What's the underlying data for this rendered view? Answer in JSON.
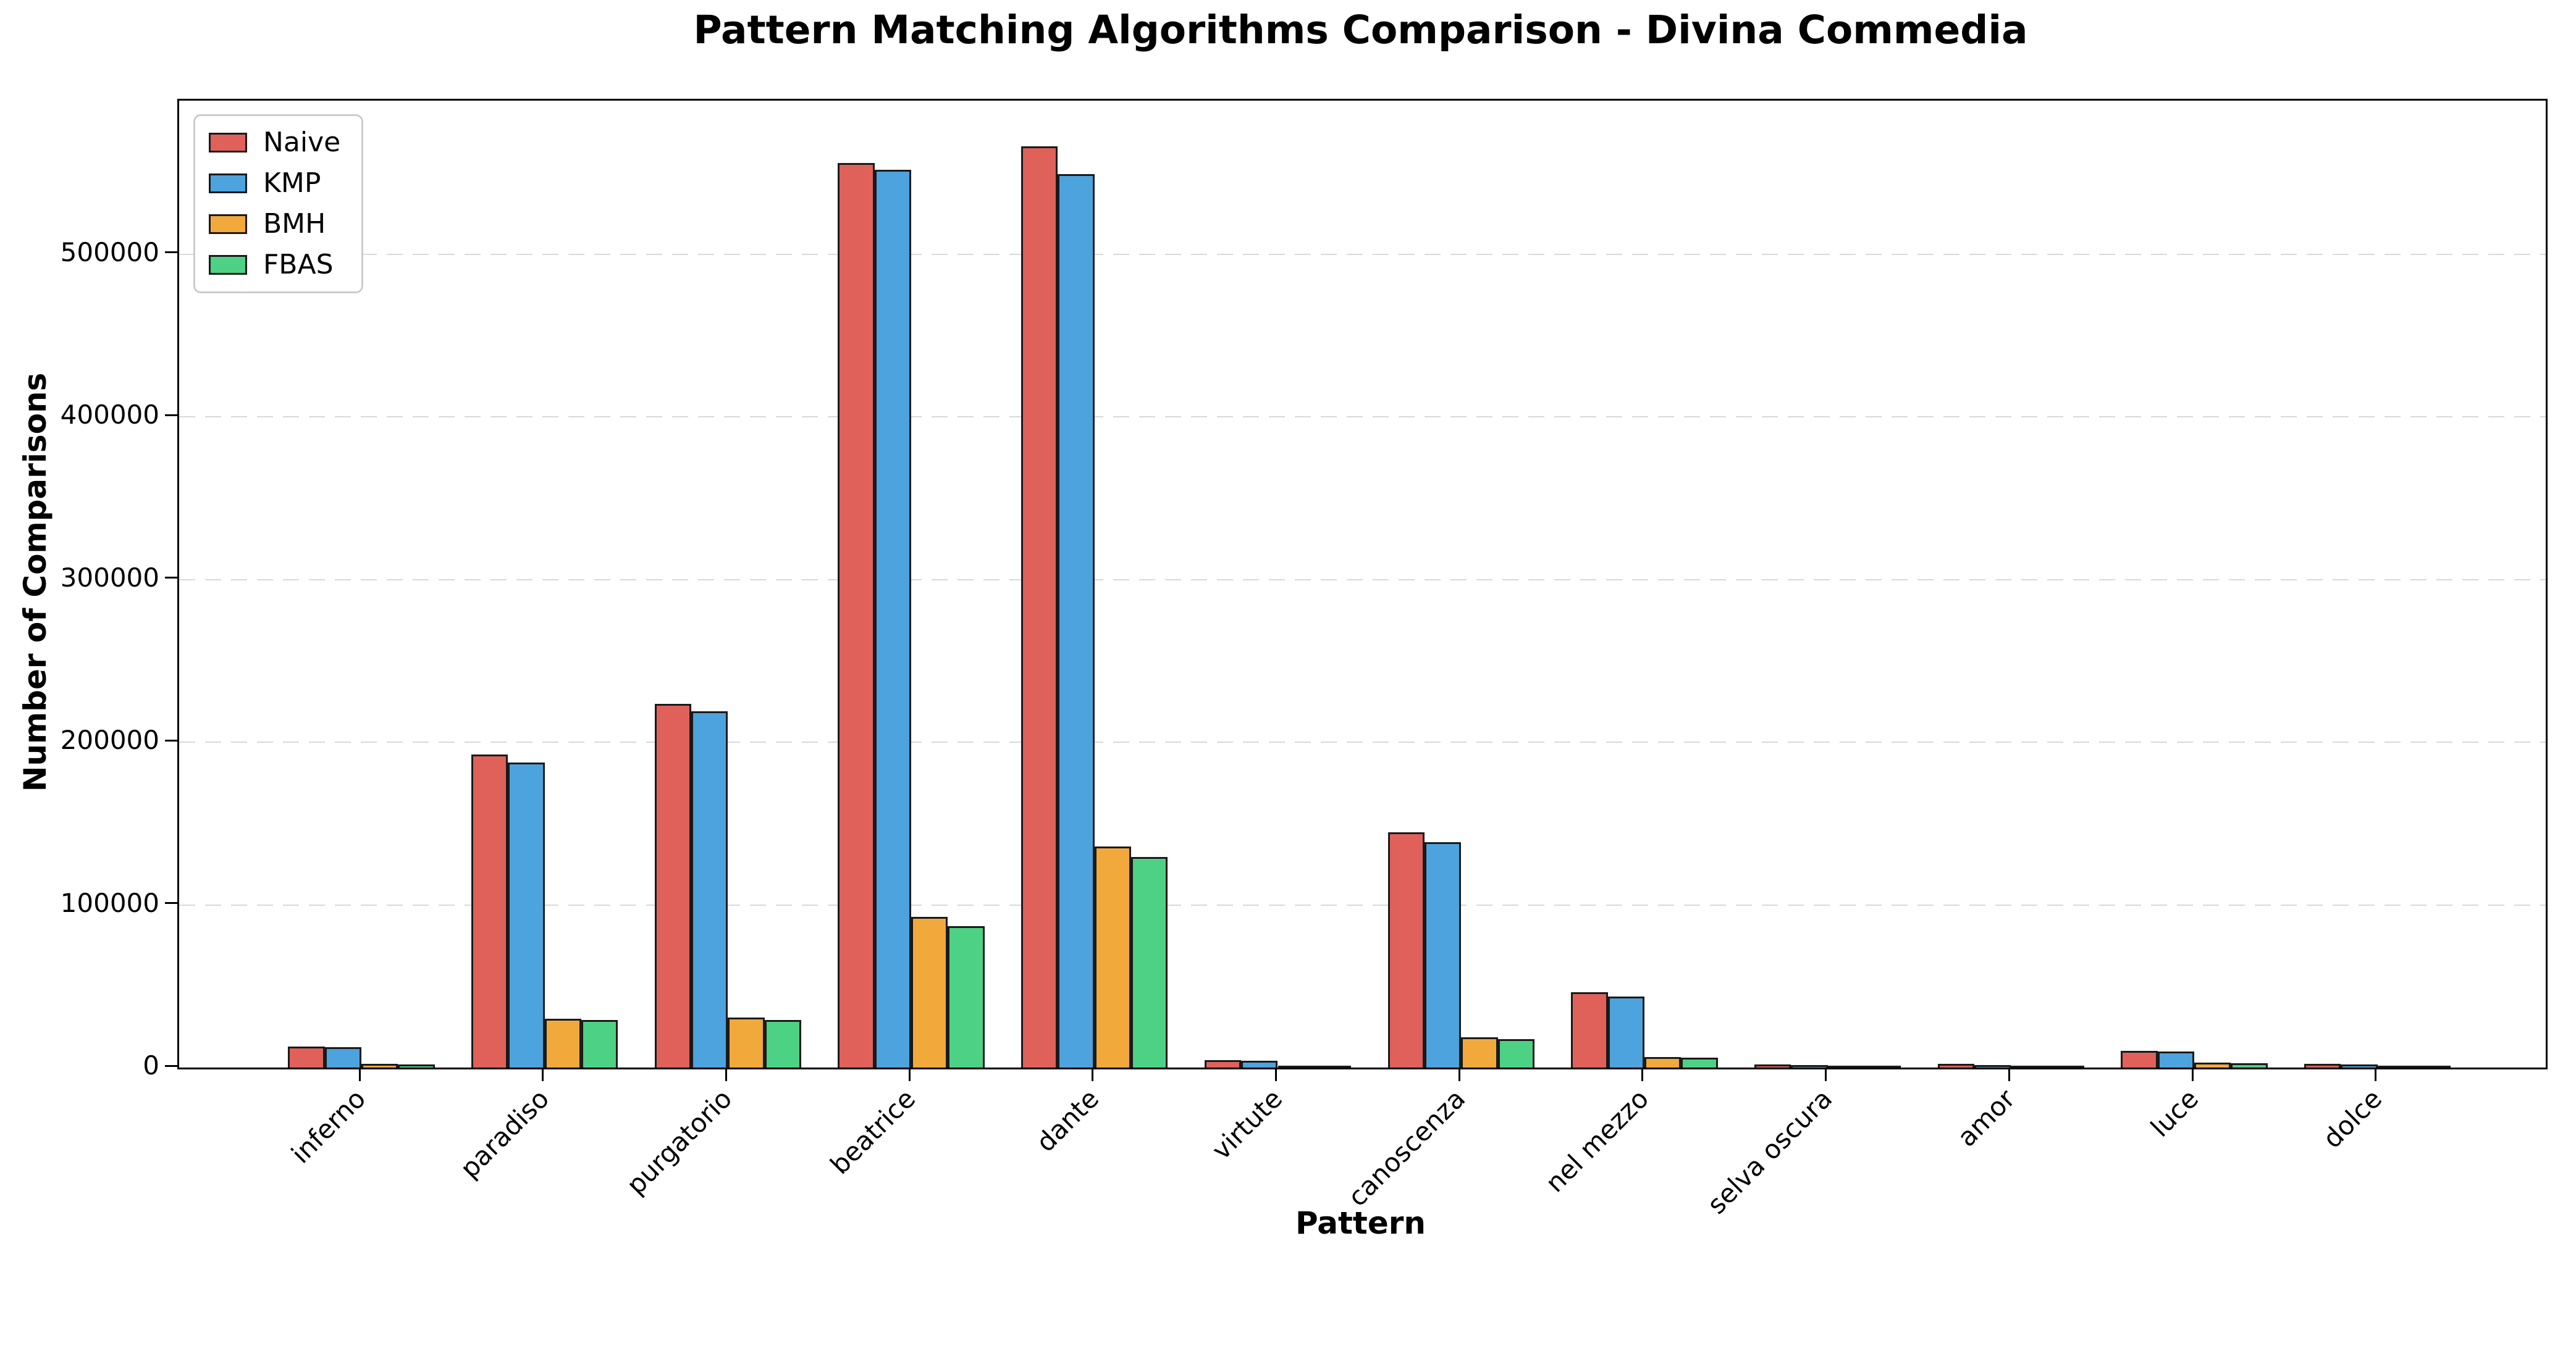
{
  "title": "Pattern Matching Algorithms Comparison - Divina Commedia",
  "chart_data": {
    "type": "bar",
    "title": "Pattern Matching Algorithms Comparison - Divina Commedia",
    "xlabel": "Pattern",
    "ylabel": "Number of Comparisons",
    "categories": [
      "inferno",
      "paradiso",
      "purgatorio",
      "beatrice",
      "dante",
      "virtute",
      "canoscenza",
      "nel mezzo",
      "selva oscura",
      "amor",
      "luce",
      "dolce"
    ],
    "series": [
      {
        "name": "Naive",
        "color": "#e0615a",
        "values": [
          13000,
          192300,
          223600,
          556000,
          566500,
          4600,
          144800,
          46300,
          1800,
          2300,
          10400,
          2300
        ]
      },
      {
        "name": "KMP",
        "color": "#4da3dd",
        "values": [
          12400,
          187500,
          219200,
          552000,
          549500,
          4200,
          138700,
          43800,
          1600,
          1400,
          9900,
          1900
        ]
      },
      {
        "name": "BMH",
        "color": "#f2a93b",
        "values": [
          2400,
          30000,
          30600,
          92600,
          135800,
          900,
          18500,
          6500,
          400,
          450,
          3200,
          500
        ]
      },
      {
        "name": "FBAS",
        "color": "#4dd285",
        "values": [
          1900,
          29400,
          29200,
          87000,
          129500,
          700,
          17500,
          6000,
          300,
          350,
          2500,
          400
        ]
      }
    ],
    "ylim": [
      0,
      594500
    ],
    "yticks": [
      0,
      100000,
      200000,
      300000,
      400000,
      500000
    ],
    "grid": "horizontal-dashed",
    "gridline_color": "#d9d9d9",
    "bar_edge_color": "#1a1a1a",
    "legend_position": "upper-left",
    "xtick_rotation_deg": 45,
    "background": "#ffffff"
  }
}
